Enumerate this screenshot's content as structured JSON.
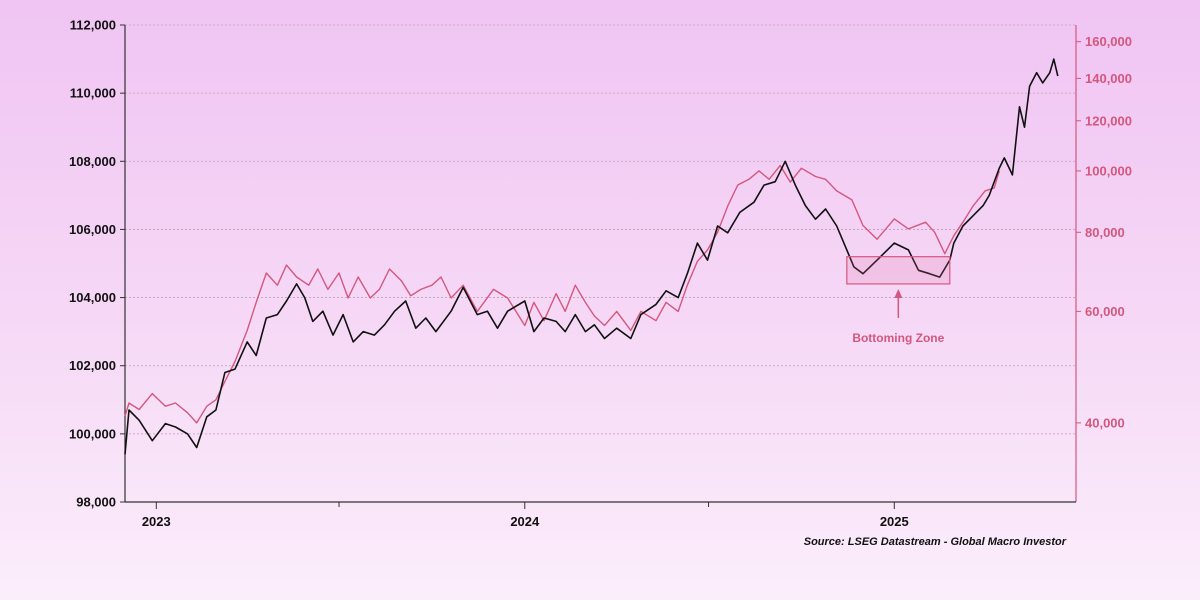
{
  "chart_data": {
    "type": "line",
    "title": "",
    "source": "Source: LSEG Datastream - Global Macro Investor",
    "grid": true,
    "x_ticks": [
      "2023",
      "2024",
      "2025"
    ],
    "x_range": [
      "2022-12-01",
      "2025-06-30"
    ],
    "y_left": {
      "range": [
        98000,
        112000
      ],
      "ticks": [
        98000,
        100000,
        102000,
        104000,
        106000,
        108000,
        110000,
        112000
      ],
      "tick_labels": [
        "98,000",
        "100,000",
        "102,000",
        "104,000",
        "106,000",
        "108,000",
        "110,000",
        "112,000"
      ]
    },
    "y_right": {
      "scale": "log",
      "range": [
        30000,
        170000
      ],
      "ticks": [
        40000,
        60000,
        80000,
        100000,
        120000,
        140000,
        160000
      ],
      "tick_labels": [
        "40,000",
        "60,000",
        "80,000",
        "100,000",
        "120,000",
        "140,000",
        "160,000"
      ],
      "color": "#d4577e"
    },
    "series": [
      {
        "axis": "left",
        "color": "#111111",
        "points": [
          [
            "2022-12-01",
            99400
          ],
          [
            "2022-12-05",
            100700
          ],
          [
            "2022-12-15",
            100400
          ],
          [
            "2022-12-28",
            99800
          ],
          [
            "2023-01-10",
            100300
          ],
          [
            "2023-01-20",
            100200
          ],
          [
            "2023-02-01",
            100000
          ],
          [
            "2023-02-10",
            99600
          ],
          [
            "2023-02-20",
            100500
          ],
          [
            "2023-03-01",
            100700
          ],
          [
            "2023-03-10",
            101800
          ],
          [
            "2023-03-20",
            101900
          ],
          [
            "2023-04-01",
            102700
          ],
          [
            "2023-04-10",
            102300
          ],
          [
            "2023-04-20",
            103400
          ],
          [
            "2023-05-01",
            103500
          ],
          [
            "2023-05-10",
            103900
          ],
          [
            "2023-05-20",
            104400
          ],
          [
            "2023-05-28",
            104000
          ],
          [
            "2023-06-05",
            103300
          ],
          [
            "2023-06-15",
            103600
          ],
          [
            "2023-06-25",
            102900
          ],
          [
            "2023-07-05",
            103500
          ],
          [
            "2023-07-15",
            102700
          ],
          [
            "2023-07-25",
            103000
          ],
          [
            "2023-08-05",
            102900
          ],
          [
            "2023-08-15",
            103200
          ],
          [
            "2023-08-25",
            103600
          ],
          [
            "2023-09-05",
            103900
          ],
          [
            "2023-09-15",
            103100
          ],
          [
            "2023-09-25",
            103400
          ],
          [
            "2023-10-05",
            103000
          ],
          [
            "2023-10-20",
            103600
          ],
          [
            "2023-11-01",
            104300
          ],
          [
            "2023-11-15",
            103500
          ],
          [
            "2023-11-25",
            103600
          ],
          [
            "2023-12-05",
            103100
          ],
          [
            "2023-12-15",
            103600
          ],
          [
            "2024-01-01",
            103900
          ],
          [
            "2024-01-10",
            103000
          ],
          [
            "2024-01-20",
            103400
          ],
          [
            "2024-02-01",
            103300
          ],
          [
            "2024-02-10",
            103000
          ],
          [
            "2024-02-20",
            103500
          ],
          [
            "2024-03-01",
            103000
          ],
          [
            "2024-03-10",
            103200
          ],
          [
            "2024-03-20",
            102800
          ],
          [
            "2024-04-01",
            103100
          ],
          [
            "2024-04-15",
            102800
          ],
          [
            "2024-04-25",
            103500
          ],
          [
            "2024-05-10",
            103800
          ],
          [
            "2024-05-20",
            104200
          ],
          [
            "2024-06-01",
            104000
          ],
          [
            "2024-06-10",
            104700
          ],
          [
            "2024-06-20",
            105600
          ],
          [
            "2024-06-30",
            105100
          ],
          [
            "2024-07-10",
            106100
          ],
          [
            "2024-07-20",
            105900
          ],
          [
            "2024-08-01",
            106500
          ],
          [
            "2024-08-15",
            106800
          ],
          [
            "2024-08-25",
            107300
          ],
          [
            "2024-09-05",
            107400
          ],
          [
            "2024-09-15",
            108000
          ],
          [
            "2024-09-25",
            107300
          ],
          [
            "2024-10-05",
            106700
          ],
          [
            "2024-10-15",
            106300
          ],
          [
            "2024-10-25",
            106600
          ],
          [
            "2024-11-05",
            106100
          ],
          [
            "2024-11-15",
            105400
          ],
          [
            "2024-11-22",
            104900
          ],
          [
            "2024-12-01",
            104700
          ],
          [
            "2024-12-15",
            105100
          ],
          [
            "2025-01-01",
            105600
          ],
          [
            "2025-01-15",
            105400
          ],
          [
            "2025-01-25",
            104800
          ],
          [
            "2025-02-05",
            104700
          ],
          [
            "2025-02-15",
            104600
          ],
          [
            "2025-02-25",
            105100
          ],
          [
            "2025-03-01",
            105600
          ],
          [
            "2025-03-10",
            106100
          ],
          [
            "2025-03-20",
            106400
          ],
          [
            "2025-03-30",
            106700
          ],
          [
            "2025-04-05",
            107000
          ],
          [
            "2025-04-15",
            107800
          ],
          [
            "2025-04-20",
            108100
          ],
          [
            "2025-04-28",
            107600
          ],
          [
            "2025-05-05",
            109600
          ],
          [
            "2025-05-10",
            109000
          ],
          [
            "2025-05-15",
            110200
          ],
          [
            "2025-05-22",
            110600
          ],
          [
            "2025-05-28",
            110300
          ],
          [
            "2025-06-04",
            110600
          ],
          [
            "2025-06-08",
            111000
          ],
          [
            "2025-06-12",
            110500
          ]
        ]
      },
      {
        "axis": "right",
        "color": "#d4577e",
        "points": [
          [
            "2022-12-01",
            41000
          ],
          [
            "2022-12-05",
            43000
          ],
          [
            "2022-12-15",
            42000
          ],
          [
            "2022-12-28",
            44500
          ],
          [
            "2023-01-10",
            42500
          ],
          [
            "2023-01-20",
            43000
          ],
          [
            "2023-02-01",
            41500
          ],
          [
            "2023-02-10",
            40000
          ],
          [
            "2023-02-20",
            42500
          ],
          [
            "2023-03-01",
            43500
          ],
          [
            "2023-03-10",
            46500
          ],
          [
            "2023-03-20",
            50000
          ],
          [
            "2023-04-01",
            56000
          ],
          [
            "2023-04-10",
            62000
          ],
          [
            "2023-04-20",
            69000
          ],
          [
            "2023-05-01",
            66000
          ],
          [
            "2023-05-10",
            71000
          ],
          [
            "2023-05-20",
            68000
          ],
          [
            "2023-06-01",
            66000
          ],
          [
            "2023-06-10",
            70000
          ],
          [
            "2023-06-20",
            65000
          ],
          [
            "2023-07-01",
            69000
          ],
          [
            "2023-07-10",
            63000
          ],
          [
            "2023-07-20",
            68000
          ],
          [
            "2023-08-01",
            63000
          ],
          [
            "2023-08-10",
            65000
          ],
          [
            "2023-08-20",
            70000
          ],
          [
            "2023-09-01",
            67000
          ],
          [
            "2023-09-10",
            63500
          ],
          [
            "2023-09-20",
            65000
          ],
          [
            "2023-10-01",
            66000
          ],
          [
            "2023-10-10",
            68000
          ],
          [
            "2023-10-20",
            63000
          ],
          [
            "2023-11-01",
            66000
          ],
          [
            "2023-11-15",
            60000
          ],
          [
            "2023-12-01",
            65000
          ],
          [
            "2023-12-15",
            63000
          ],
          [
            "2024-01-01",
            57000
          ],
          [
            "2024-01-10",
            62000
          ],
          [
            "2024-01-20",
            58000
          ],
          [
            "2024-02-01",
            64000
          ],
          [
            "2024-02-10",
            60000
          ],
          [
            "2024-02-20",
            66000
          ],
          [
            "2024-03-01",
            62000
          ],
          [
            "2024-03-10",
            59000
          ],
          [
            "2024-03-20",
            57000
          ],
          [
            "2024-04-01",
            60000
          ],
          [
            "2024-04-15",
            56000
          ],
          [
            "2024-04-25",
            60000
          ],
          [
            "2024-05-10",
            58000
          ],
          [
            "2024-05-20",
            62000
          ],
          [
            "2024-06-01",
            60000
          ],
          [
            "2024-06-10",
            66000
          ],
          [
            "2024-06-20",
            72000
          ],
          [
            "2024-06-30",
            75000
          ],
          [
            "2024-07-10",
            80000
          ],
          [
            "2024-07-20",
            88000
          ],
          [
            "2024-07-30",
            95000
          ],
          [
            "2024-08-10",
            97000
          ],
          [
            "2024-08-20",
            100000
          ],
          [
            "2024-08-30",
            97000
          ],
          [
            "2024-09-10",
            102000
          ],
          [
            "2024-09-20",
            96000
          ],
          [
            "2024-10-01",
            101000
          ],
          [
            "2024-10-15",
            98000
          ],
          [
            "2024-10-25",
            97000
          ],
          [
            "2024-11-05",
            93000
          ],
          [
            "2024-11-20",
            90000
          ],
          [
            "2024-12-01",
            82000
          ],
          [
            "2024-12-15",
            78000
          ],
          [
            "2025-01-01",
            84000
          ],
          [
            "2025-01-15",
            81000
          ],
          [
            "2025-02-01",
            83000
          ],
          [
            "2025-02-10",
            80000
          ],
          [
            "2025-02-20",
            74000
          ],
          [
            "2025-03-01",
            79000
          ],
          [
            "2025-03-10",
            83000
          ],
          [
            "2025-03-20",
            88000
          ],
          [
            "2025-04-01",
            93000
          ],
          [
            "2025-04-10",
            94000
          ],
          [
            "2025-04-15",
            100000
          ]
        ]
      }
    ],
    "annotations": [
      {
        "text": "Bottoming Zone",
        "box_x": [
          "2024-11-15",
          "2025-02-25"
        ],
        "box_y": [
          104400,
          105200
        ],
        "color": "#d4577e"
      }
    ]
  }
}
